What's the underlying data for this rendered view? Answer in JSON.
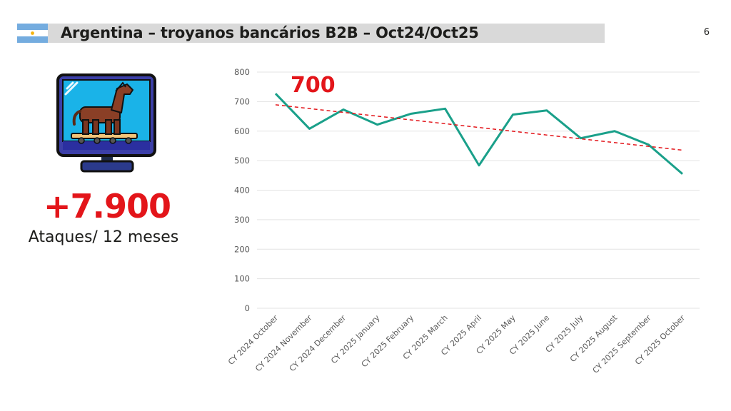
{
  "header": {
    "title": "Argentina – troyanos bancários B2B – Oct24/Oct25",
    "page_number": "6",
    "flag_icon": "argentina-flag-icon"
  },
  "illustration": {
    "icon": "trojan-horse-monitor-icon"
  },
  "highlight": {
    "value": "+7.900",
    "caption": "Ataques/ 12 meses",
    "color": "#e3151a"
  },
  "colors": {
    "line": "#1aa08a",
    "trend": "#e3151a",
    "annotation": "#e3151a",
    "grid": "#e3e3e3",
    "axis_text": "#595959",
    "header_bar": "#d9d9d9"
  },
  "chart_data": {
    "type": "line",
    "title": "",
    "xlabel": "",
    "ylabel": "",
    "categories": [
      "CY 2024 October",
      "CY 2024 November",
      "CY 2024 December",
      "CY 2025 January",
      "CY 2025 February",
      "CY 2025 March",
      "CY 2025 April",
      "CY 2025 May",
      "CY 2025 June",
      "CY 2025 July",
      "CY 2025 August",
      "CY 2025 September",
      "CY 2025 October"
    ],
    "series": [
      {
        "values": [
          727,
          608,
          673,
          622,
          659,
          676,
          484,
          656,
          670,
          576,
          600,
          554,
          455
        ]
      }
    ],
    "trendline": {
      "type": "linear",
      "dashed": true
    },
    "ylim": [
      0,
      800
    ],
    "yticks": [
      0,
      100,
      200,
      300,
      400,
      500,
      600,
      700,
      800
    ],
    "grid": true,
    "legend": "none",
    "annotations": [
      {
        "text": "700"
      }
    ]
  }
}
